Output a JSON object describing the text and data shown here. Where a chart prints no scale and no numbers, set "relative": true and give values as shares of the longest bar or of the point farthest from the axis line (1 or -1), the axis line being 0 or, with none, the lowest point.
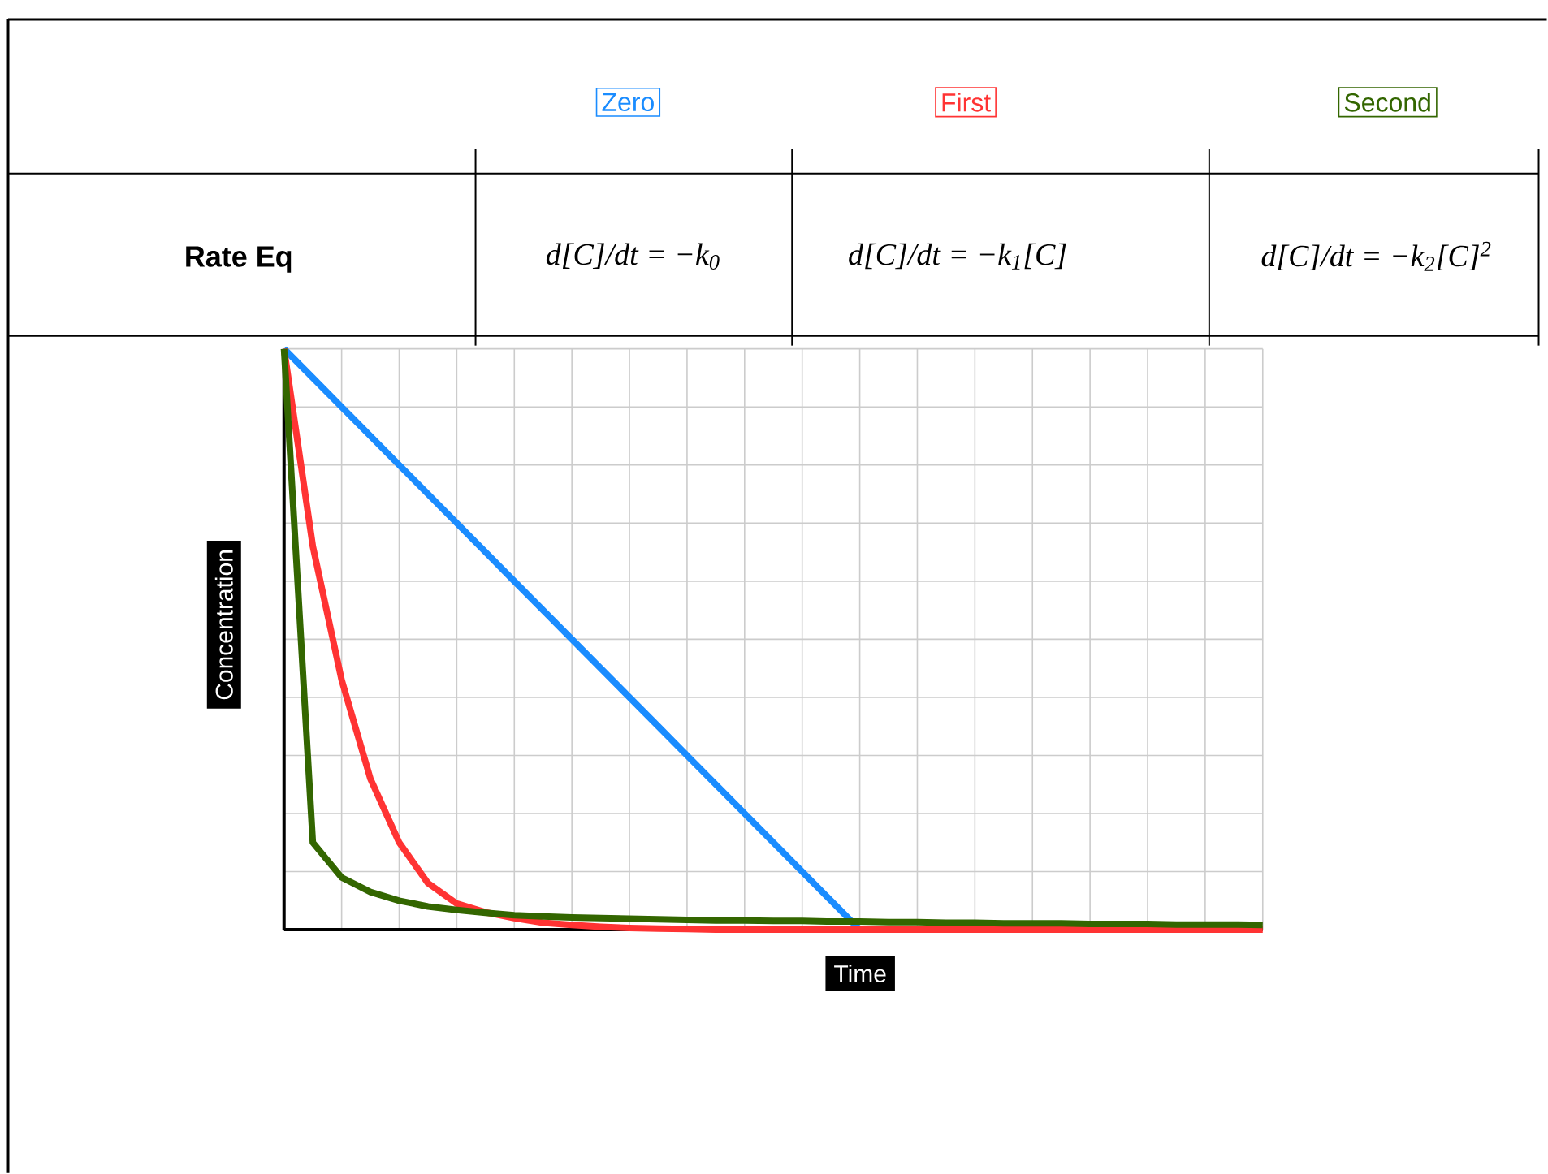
{
  "chart_data": {
    "type": "line",
    "relative": true,
    "xlabel": "Time",
    "ylabel": "Concentration",
    "categories": [
      null,
      null,
      null,
      null,
      null,
      null,
      null,
      null,
      null,
      null,
      null,
      null,
      null,
      null,
      null,
      null,
      null,
      null,
      null,
      null,
      null,
      null,
      null,
      null,
      null,
      null,
      null,
      null,
      null,
      null,
      null,
      null,
      null,
      null,
      null
    ],
    "series": [
      {
        "name": "Zero",
        "color": "#1a8cff",
        "values": [
          1,
          0.95,
          0.9,
          0.85,
          0.8,
          0.75,
          0.7,
          0.65,
          0.6,
          0.55,
          0.5,
          0.45,
          0.4,
          0.35,
          0.3,
          0.25,
          0.2,
          0.15,
          0.1,
          0.05,
          0,
          null,
          null,
          null,
          null,
          null,
          null,
          null,
          null,
          null,
          null,
          null,
          null,
          null,
          null
        ]
      },
      {
        "name": "First",
        "color": "#ff3333",
        "values": [
          1,
          0.66,
          0.43,
          0.26,
          0.15,
          0.08,
          0.045,
          0.03,
          0.02,
          0.012,
          0.008,
          0.005,
          0.003,
          0.002,
          0.001,
          0,
          0,
          0,
          0,
          0,
          0,
          0,
          0,
          0,
          0,
          0,
          0,
          0,
          0,
          0,
          0,
          0,
          0,
          0,
          0
        ]
      },
      {
        "name": "Second",
        "color": "#336600",
        "values": [
          1,
          0.15,
          0.09,
          0.065,
          0.05,
          0.04,
          0.034,
          0.029,
          0.025,
          0.023,
          0.021,
          0.02,
          0.019,
          0.018,
          0.017,
          0.016,
          0.016,
          0.015,
          0.015,
          0.014,
          0.014,
          0.013,
          0.013,
          0.012,
          0.012,
          0.011,
          0.011,
          0.011,
          0.01,
          0.01,
          0.01,
          0.009,
          0.009,
          0.009,
          0.008
        ]
      }
    ],
    "legend": "top",
    "grid": true,
    "annotations": [
      "Rate Eq",
      "d[C]/dt = −k$_{0}$",
      "d[C]/dt = −k$_{1}$[C]",
      "d[C]/dt = −k$_{2}$[C]$^{2}$"
    ]
  }
}
